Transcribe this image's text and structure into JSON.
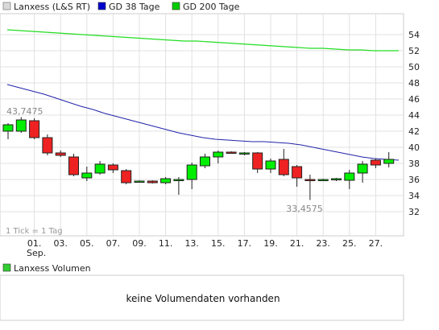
{
  "chart_data": {
    "type": "candlestick",
    "legend": [
      {
        "label": "Lanxess (L&S RT)",
        "color": "#d9d9d9"
      },
      {
        "label": "GD 38 Tage",
        "color": "#0000cc"
      },
      {
        "label": "GD 200 Tage",
        "color": "#00cc00"
      }
    ],
    "ylim": [
      30,
      55
    ],
    "y_ticks": [
      32,
      34,
      36,
      38,
      40,
      42,
      44,
      46,
      48,
      50,
      52,
      54
    ],
    "x_tick_labels": [
      "01.",
      "03.",
      "05.",
      "07.",
      "09.",
      "11.",
      "13.",
      "15.",
      "17.",
      "19.",
      "21.",
      "23.",
      "25.",
      "27."
    ],
    "x_sub_label": "Sep.",
    "candles": [
      {
        "o": 42.0,
        "h": 43.0,
        "l": 41.0,
        "c": 42.8
      },
      {
        "o": 42.0,
        "h": 43.7475,
        "l": 41.8,
        "c": 43.4
      },
      {
        "o": 43.3,
        "h": 43.6,
        "l": 41.0,
        "c": 41.2
      },
      {
        "o": 41.2,
        "h": 41.6,
        "l": 39.0,
        "c": 39.3
      },
      {
        "o": 39.3,
        "h": 39.6,
        "l": 38.8,
        "c": 39.0
      },
      {
        "o": 38.8,
        "h": 39.2,
        "l": 36.4,
        "c": 36.6
      },
      {
        "o": 36.2,
        "h": 37.6,
        "l": 35.8,
        "c": 36.8
      },
      {
        "o": 36.8,
        "h": 38.3,
        "l": 36.6,
        "c": 37.9
      },
      {
        "o": 37.8,
        "h": 38.0,
        "l": 36.8,
        "c": 37.2
      },
      {
        "o": 37.1,
        "h": 37.3,
        "l": 35.4,
        "c": 35.6
      },
      {
        "o": 35.8,
        "h": 35.9,
        "l": 35.7,
        "c": 35.8
      },
      {
        "o": 35.8,
        "h": 35.9,
        "l": 35.5,
        "c": 35.6
      },
      {
        "o": 35.6,
        "h": 36.3,
        "l": 35.4,
        "c": 36.1
      },
      {
        "o": 35.9,
        "h": 36.3,
        "l": 34.1,
        "c": 36.0
      },
      {
        "o": 36.0,
        "h": 38.1,
        "l": 34.8,
        "c": 37.8
      },
      {
        "o": 37.7,
        "h": 39.2,
        "l": 37.4,
        "c": 38.8
      },
      {
        "o": 38.8,
        "h": 39.6,
        "l": 38.0,
        "c": 39.4
      },
      {
        "o": 39.4,
        "h": 39.5,
        "l": 39.3,
        "c": 39.3
      },
      {
        "o": 39.2,
        "h": 39.4,
        "l": 39.0,
        "c": 39.3
      },
      {
        "o": 39.3,
        "h": 39.4,
        "l": 36.8,
        "c": 37.3
      },
      {
        "o": 37.3,
        "h": 38.6,
        "l": 36.8,
        "c": 38.3
      },
      {
        "o": 38.5,
        "h": 39.8,
        "l": 36.4,
        "c": 36.6
      },
      {
        "o": 37.6,
        "h": 37.8,
        "l": 35.1,
        "c": 36.2
      },
      {
        "o": 36.0,
        "h": 36.6,
        "l": 33.4575,
        "c": 35.9
      },
      {
        "o": 36.0,
        "h": 36.1,
        "l": 35.9,
        "c": 36.0
      },
      {
        "o": 36.0,
        "h": 36.2,
        "l": 35.8,
        "c": 36.1
      },
      {
        "o": 35.9,
        "h": 37.2,
        "l": 34.8,
        "c": 36.8
      },
      {
        "o": 36.8,
        "h": 38.3,
        "l": 35.6,
        "c": 37.9
      },
      {
        "o": 38.4,
        "h": 38.6,
        "l": 37.4,
        "c": 37.8
      },
      {
        "o": 38.0,
        "h": 39.4,
        "l": 37.5,
        "c": 38.5
      }
    ],
    "gd38": [
      47.8,
      47.4,
      47.0,
      46.6,
      46.1,
      45.6,
      45.1,
      44.7,
      44.2,
      43.8,
      43.4,
      43.0,
      42.6,
      42.2,
      41.8,
      41.5,
      41.2,
      41.0,
      40.9,
      40.8,
      40.7,
      40.7,
      40.6,
      40.5,
      40.3,
      40.0,
      39.7,
      39.4,
      39.1,
      38.8,
      38.6,
      38.5,
      38.4
    ],
    "gd200": [
      54.6,
      54.5,
      54.4,
      54.3,
      54.2,
      54.1,
      54.0,
      53.9,
      53.8,
      53.7,
      53.6,
      53.5,
      53.4,
      53.3,
      53.2,
      53.2,
      53.1,
      53.0,
      52.9,
      52.8,
      52.7,
      52.6,
      52.5,
      52.4,
      52.3,
      52.3,
      52.2,
      52.1,
      52.1,
      52.0,
      52.0,
      52.0
    ],
    "annotations": {
      "high": "43,7475",
      "low": "33,4575",
      "tick_note": "1 Tick = 1 Tag"
    },
    "colors": {
      "up": "#00ee00",
      "down": "#ee2222",
      "gd38": "#2222aa",
      "gd200": "#22dd22",
      "grid": "#e0e0e0"
    }
  },
  "volume": {
    "legend_label": "Lanxess Volumen",
    "legend_color": "#33cc33",
    "message": "keine Volumendaten vorhanden"
  }
}
